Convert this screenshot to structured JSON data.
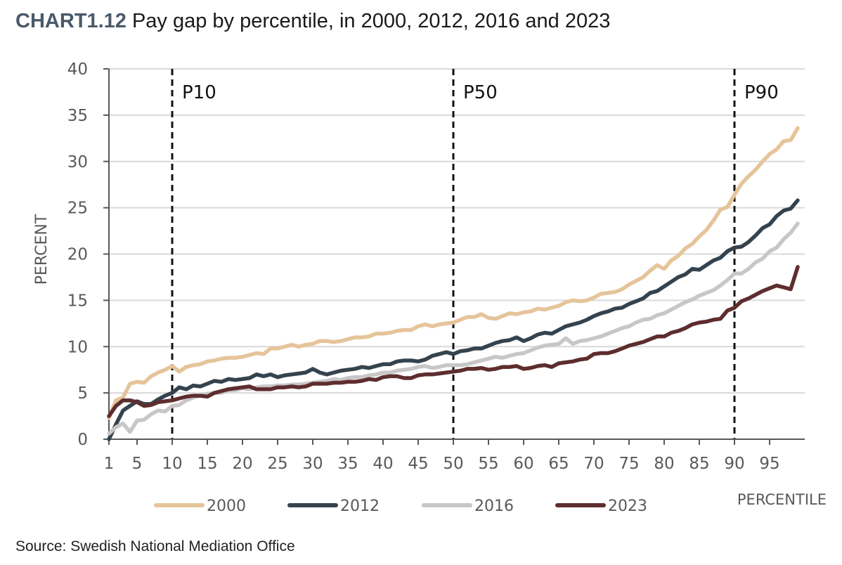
{
  "header": {
    "label": "CHART1.12",
    "title": "Pay gap by percentile, in 2000, 2012, 2016 and 2023"
  },
  "source": "Source: Swedish National Mediation Office",
  "chart_data": {
    "type": "line",
    "ylabel": "PERCENT",
    "xlabel": "PERCENTILE",
    "xlim": [
      1,
      100
    ],
    "ylim": [
      0,
      40
    ],
    "yticks": [
      0,
      5,
      10,
      15,
      20,
      25,
      30,
      35,
      40
    ],
    "xticks": [
      1,
      5,
      10,
      15,
      20,
      25,
      30,
      35,
      40,
      45,
      50,
      55,
      60,
      65,
      70,
      75,
      80,
      85,
      90,
      95
    ],
    "grid": "horizontal",
    "legend_position": "bottom",
    "reference_lines": [
      {
        "x": 10,
        "label": "P10"
      },
      {
        "x": 50,
        "label": "P50"
      },
      {
        "x": 90,
        "label": "P90"
      }
    ],
    "x": [
      1,
      2,
      3,
      4,
      5,
      6,
      7,
      8,
      9,
      10,
      11,
      12,
      13,
      14,
      15,
      16,
      17,
      18,
      19,
      20,
      21,
      22,
      23,
      24,
      25,
      26,
      27,
      28,
      29,
      30,
      31,
      32,
      33,
      34,
      35,
      36,
      37,
      38,
      39,
      40,
      41,
      42,
      43,
      44,
      45,
      46,
      47,
      48,
      49,
      50,
      51,
      52,
      53,
      54,
      55,
      56,
      57,
      58,
      59,
      60,
      61,
      62,
      63,
      64,
      65,
      66,
      67,
      68,
      69,
      70,
      71,
      72,
      73,
      74,
      75,
      76,
      77,
      78,
      79,
      80,
      81,
      82,
      83,
      84,
      85,
      86,
      87,
      88,
      89,
      90,
      91,
      92,
      93,
      94,
      95,
      96,
      97,
      98,
      99
    ],
    "series": [
      {
        "name": "2000",
        "color": "#e6c49a",
        "values": [
          2.3,
          4.2,
          4.5,
          6.0,
          6.2,
          6.1,
          6.8,
          7.2,
          7.5,
          7.9,
          7.3,
          7.8,
          8.0,
          8.1,
          8.4,
          8.5,
          8.7,
          8.8,
          8.8,
          8.9,
          9.1,
          9.3,
          9.2,
          9.8,
          9.8,
          10.0,
          10.2,
          10.0,
          10.2,
          10.3,
          10.6,
          10.6,
          10.5,
          10.6,
          10.8,
          11.0,
          11.0,
          11.1,
          11.4,
          11.4,
          11.5,
          11.7,
          11.8,
          11.8,
          12.2,
          12.4,
          12.2,
          12.4,
          12.5,
          12.6,
          12.9,
          13.2,
          13.2,
          13.5,
          13.1,
          13.0,
          13.3,
          13.6,
          13.5,
          13.7,
          13.8,
          14.1,
          14.0,
          14.2,
          14.4,
          14.8,
          15.0,
          14.9,
          15.0,
          15.3,
          15.7,
          15.8,
          15.9,
          16.2,
          16.7,
          17.1,
          17.5,
          18.2,
          18.8,
          18.4,
          19.3,
          19.8,
          20.6,
          21.1,
          21.9,
          22.6,
          23.6,
          24.8,
          25.1,
          26.4,
          27.6,
          28.4,
          29.1,
          30.0,
          30.8,
          31.3,
          32.2,
          32.3,
          33.6
        ]
      },
      {
        "name": "2012",
        "color": "#34434e",
        "values": [
          0.0,
          1.6,
          3.1,
          3.6,
          4.1,
          3.8,
          3.8,
          4.3,
          4.7,
          5.0,
          5.6,
          5.4,
          5.8,
          5.7,
          6.0,
          6.3,
          6.2,
          6.5,
          6.4,
          6.5,
          6.6,
          7.0,
          6.8,
          7.0,
          6.7,
          6.9,
          7.0,
          7.1,
          7.2,
          7.6,
          7.2,
          7.0,
          7.2,
          7.4,
          7.5,
          7.6,
          7.8,
          7.7,
          7.9,
          8.1,
          8.1,
          8.4,
          8.5,
          8.5,
          8.4,
          8.6,
          9.0,
          9.2,
          9.4,
          9.2,
          9.5,
          9.6,
          9.8,
          9.8,
          10.1,
          10.4,
          10.6,
          10.7,
          11.0,
          10.6,
          10.9,
          11.3,
          11.5,
          11.4,
          11.8,
          12.2,
          12.4,
          12.6,
          12.9,
          13.3,
          13.6,
          13.8,
          14.1,
          14.2,
          14.6,
          14.9,
          15.2,
          15.8,
          16.0,
          16.5,
          17.0,
          17.5,
          17.8,
          18.4,
          18.3,
          18.8,
          19.3,
          19.6,
          20.3,
          20.7,
          20.8,
          21.3,
          22.0,
          22.8,
          23.2,
          24.1,
          24.7,
          24.9,
          25.8
        ]
      },
      {
        "name": "2016",
        "color": "#c9c6c7",
        "values": [
          0.6,
          1.3,
          1.7,
          0.8,
          2.0,
          2.1,
          2.7,
          3.1,
          3.0,
          3.6,
          3.7,
          4.2,
          4.5,
          4.7,
          4.9,
          5.0,
          5.0,
          5.3,
          5.3,
          5.5,
          5.4,
          5.6,
          5.7,
          5.7,
          5.8,
          5.8,
          5.9,
          5.9,
          6.0,
          6.1,
          6.2,
          6.3,
          6.5,
          6.4,
          6.6,
          6.7,
          6.7,
          6.9,
          7.0,
          7.2,
          7.2,
          7.4,
          7.5,
          7.6,
          7.8,
          7.9,
          7.7,
          7.8,
          8.0,
          8.0,
          8.0,
          8.1,
          8.3,
          8.5,
          8.7,
          8.9,
          8.8,
          9.0,
          9.2,
          9.3,
          9.6,
          9.9,
          10.1,
          10.2,
          10.3,
          10.9,
          10.3,
          10.6,
          10.7,
          10.9,
          11.1,
          11.4,
          11.7,
          12.0,
          12.2,
          12.6,
          12.9,
          13.0,
          13.4,
          13.6,
          14.0,
          14.4,
          14.8,
          15.1,
          15.5,
          15.8,
          16.1,
          16.6,
          17.2,
          17.9,
          17.9,
          18.4,
          19.1,
          19.5,
          20.3,
          20.7,
          21.6,
          22.3,
          23.3
        ]
      },
      {
        "name": "2023",
        "color": "#5e2d2e",
        "values": [
          2.5,
          3.6,
          4.2,
          4.2,
          4.0,
          3.6,
          3.7,
          4.0,
          4.1,
          4.2,
          4.4,
          4.6,
          4.7,
          4.7,
          4.6,
          5.0,
          5.2,
          5.4,
          5.5,
          5.6,
          5.7,
          5.4,
          5.4,
          5.4,
          5.6,
          5.6,
          5.7,
          5.6,
          5.7,
          6.0,
          6.0,
          6.0,
          6.1,
          6.1,
          6.2,
          6.2,
          6.3,
          6.5,
          6.4,
          6.7,
          6.8,
          6.8,
          6.6,
          6.6,
          6.9,
          7.0,
          7.0,
          7.1,
          7.2,
          7.3,
          7.4,
          7.6,
          7.6,
          7.7,
          7.5,
          7.6,
          7.8,
          7.8,
          7.9,
          7.6,
          7.7,
          7.9,
          8.0,
          7.8,
          8.2,
          8.3,
          8.4,
          8.6,
          8.7,
          9.2,
          9.3,
          9.3,
          9.5,
          9.8,
          10.1,
          10.3,
          10.5,
          10.8,
          11.1,
          11.1,
          11.5,
          11.7,
          12.0,
          12.4,
          12.6,
          12.7,
          12.9,
          13.0,
          13.9,
          14.2,
          14.9,
          15.2,
          15.6,
          16.0,
          16.3,
          16.6,
          16.4,
          16.2,
          18.6
        ]
      }
    ]
  }
}
